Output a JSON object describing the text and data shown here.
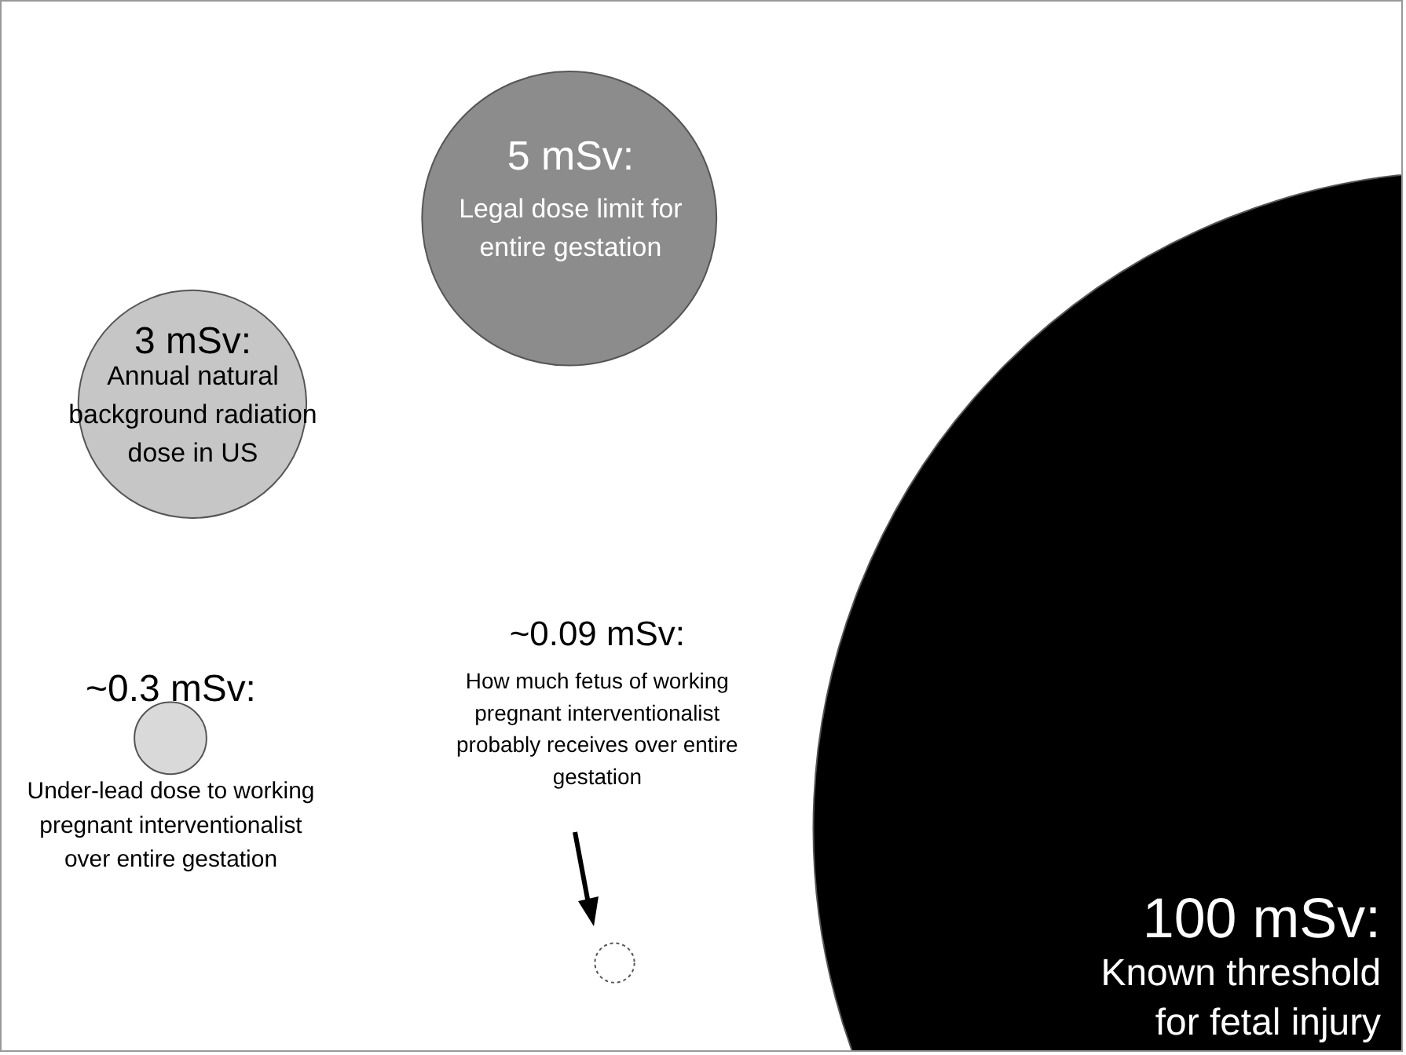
{
  "chart_data": {
    "type": "other",
    "categories": [
      "Legal dose limit for entire gestation",
      "Annual natural background radiation dose in US",
      "Under-lead dose to working pregnant interventionalist over entire gestation",
      "How much fetus of working pregnant interventionalist probably receives over entire gestation",
      "Known threshold for fetal injury"
    ],
    "values": [
      5,
      3,
      0.3,
      0.09,
      100
    ],
    "value_labels": [
      "5 mSv:",
      "3 mSv:",
      "~0.3 mSv:",
      "~0.09 mSv:",
      "100 mSv:"
    ],
    "colors": [
      "#8c8c8c",
      "#c6c6c6",
      "#d9d9d9",
      "#ffffff",
      "#000000"
    ]
  }
}
